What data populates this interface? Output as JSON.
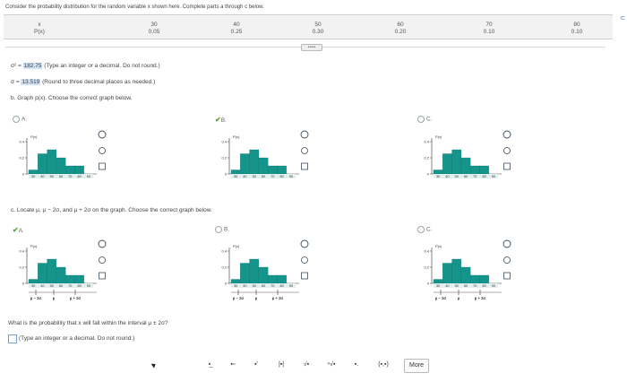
{
  "question": "Consider the probability distribution for the random variable x shown here. Complete parts a through c below.",
  "table": {
    "row_labels": [
      "x",
      "P(x)"
    ],
    "x": [
      "30",
      "40",
      "50",
      "60",
      "70",
      "80"
    ],
    "p": [
      "0.05",
      "0.25",
      "0.30",
      "0.20",
      "0.10",
      "0.10"
    ]
  },
  "variance": {
    "label": "σ² =",
    "value": "182.75",
    "hint": "(Type an integer or a decimal. Do not round.)"
  },
  "sd": {
    "label": "σ =",
    "value": "13.519",
    "hint": "(Round to three decimal places as needed.)"
  },
  "part_b": "b. Graph p(x). Choose the correct graph below.",
  "part_c": "c. Locate μ, μ − 2σ, and μ + 2σ on the graph. Choose the correct graph below.",
  "options": {
    "A": "A.",
    "B": "B.",
    "C": "C."
  },
  "graph": {
    "ylabel": "P(x)",
    "yticks": [
      "0.4",
      "0.2",
      "0"
    ],
    "xticks": [
      "30",
      "40",
      "50",
      "60",
      "70",
      "80",
      "90"
    ]
  },
  "markers": {
    "minus2": "μ − 2σ",
    "mu": "μ",
    "plus2": "μ + 2σ"
  },
  "final_question": "What is the probability that x will fall within the interval μ ± 2σ?",
  "final_hint": "(Type an integer or a decimal. Do not round.)",
  "toolbar": {
    "more": "More"
  },
  "chart_data": [
    {
      "type": "bar",
      "title": "",
      "categories": [
        "30",
        "40",
        "50",
        "60",
        "70",
        "80"
      ],
      "values": [
        0.05,
        0.25,
        0.3,
        0.2,
        0.1,
        0.1
      ],
      "ylabel": "P(x)",
      "ylim": [
        0,
        0.4
      ]
    }
  ],
  "colors": {
    "bar": "#15948c",
    "check": "#5aa02c",
    "highlight": "#cfe1f5"
  }
}
